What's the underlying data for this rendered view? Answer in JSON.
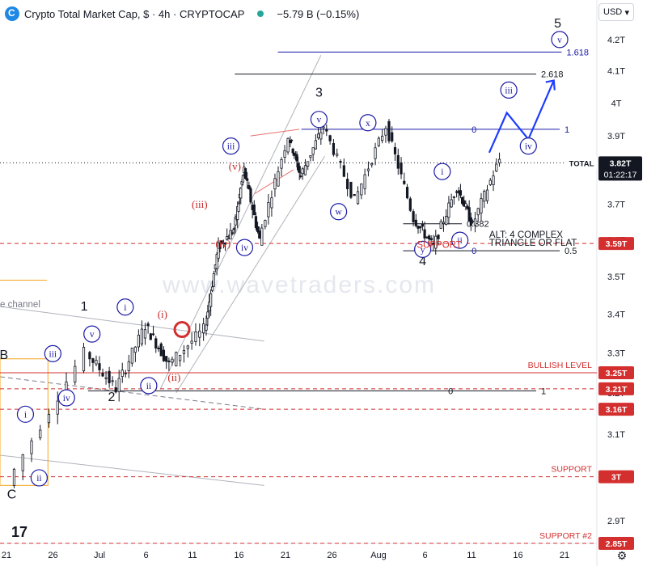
{
  "header": {
    "title": "Crypto Total Market Cap, $ · 4h · CRYPTOCAP",
    "change": "−5.79 B (−0.15%)"
  },
  "toolbar": {
    "currency": "USD"
  },
  "colors": {
    "up": "#131722",
    "wave_blue": "#1a1aa6",
    "wave_red": "#c62828",
    "projection": "#1e3cff",
    "price_label": "#131722",
    "level_label": "#d32f2f"
  },
  "chart_data": {
    "type": "candlestick",
    "symbol": "CRYPTOCAP:TOTAL",
    "timeframe": "4h",
    "x_ticks": [
      "21",
      "26",
      "Jul",
      "6",
      "11",
      "16",
      "21",
      "26",
      "Aug",
      "6",
      "11",
      "16",
      "21"
    ],
    "y_ticks": [
      "4.2T",
      "4.1T",
      "4T",
      "3.9T",
      "3.7T",
      "3.6T",
      "3.5T",
      "3.4T",
      "3.3T",
      "3.2T",
      "3.1T",
      "2.9T"
    ],
    "ylim": [
      2.85,
      4.25
    ],
    "y_scale": "log",
    "price_path": [
      {
        "label": "C",
        "x": 0.5,
        "y": 2.98
      },
      {
        "label": "1",
        "x": 4.5,
        "y": 3.3
      },
      {
        "label": "2",
        "x": 6.0,
        "y": 3.21
      },
      {
        "label": "",
        "x": 7.5,
        "y": 3.37
      },
      {
        "label": "",
        "x": 8.7,
        "y": 3.27
      },
      {
        "label": "",
        "x": 10.5,
        "y": 3.36
      },
      {
        "label": "",
        "x": 11.2,
        "y": 3.58
      },
      {
        "label": "",
        "x": 12.0,
        "y": 3.63
      },
      {
        "label": "",
        "x": 12.5,
        "y": 3.8
      },
      {
        "label": "",
        "x": 13.3,
        "y": 3.6
      },
      {
        "label": "",
        "x": 14.8,
        "y": 3.9
      },
      {
        "label": "",
        "x": 15.4,
        "y": 3.78
      },
      {
        "label": "3",
        "x": 16.6,
        "y": 3.93
      },
      {
        "label": "",
        "x": 18.2,
        "y": 3.71
      },
      {
        "label": "",
        "x": 19.8,
        "y": 3.93
      },
      {
        "label": "",
        "x": 21.2,
        "y": 3.66
      },
      {
        "label": "",
        "x": 22.2,
        "y": 3.58
      },
      {
        "label": "",
        "x": 23.4,
        "y": 3.75
      },
      {
        "label": "",
        "x": 24.2,
        "y": 3.64
      },
      {
        "label": "",
        "x": 25.6,
        "y": 3.83
      }
    ],
    "current_price": {
      "label": "TOTAL",
      "value": "3.82T",
      "countdown": "01:22:17"
    },
    "price_tags": [
      {
        "value": "3.59T",
        "y": 3.59
      },
      {
        "value": "3.25T",
        "y": 3.25
      },
      {
        "value": "3.21T",
        "y": 3.21
      },
      {
        "value": "3.16T",
        "y": 3.16
      },
      {
        "value": "3T",
        "y": 3.0
      },
      {
        "value": "2.85T",
        "y": 2.85
      }
    ],
    "horizontal_levels": [
      {
        "label": "BULLISH LEVEL",
        "y": 3.25,
        "style": "solid"
      },
      {
        "label": "",
        "y": 3.21,
        "style": "dashed"
      },
      {
        "label": "",
        "y": 3.16,
        "style": "dashed"
      },
      {
        "label": "SUPPORT",
        "y": 3.0,
        "style": "dashed"
      },
      {
        "label": "SUPPORT #2",
        "y": 2.85,
        "style": "dashed"
      },
      {
        "label": "",
        "y": 3.59,
        "style": "dashed"
      }
    ],
    "fib_levels": [
      {
        "label": "1.618",
        "y": 4.16,
        "color": "#1a1aa6"
      },
      {
        "label": "2.618",
        "y": 4.09,
        "color": "#131722"
      },
      {
        "label": "1",
        "y": 3.92,
        "color": "#1a1aa6"
      },
      {
        "label": "0",
        "y": 3.92,
        "color": "#1a1aa6"
      },
      {
        "label": "0.382",
        "y": 3.645,
        "color": "#131722"
      },
      {
        "label": "0.5",
        "y": 3.57,
        "color": "#131722"
      },
      {
        "label": "0",
        "y": 3.57,
        "color": "#1a1aa6"
      },
      {
        "label": "1",
        "y": 3.205,
        "color": "#131722"
      },
      {
        "label": "0",
        "y": 3.205,
        "color": "#131722"
      }
    ],
    "wave_labels": [
      {
        "text": "C",
        "type": "plain",
        "x": 0.6,
        "y": 2.95
      },
      {
        "text": "B",
        "type": "plain",
        "x": 0.2,
        "y": 3.285
      },
      {
        "text": "1",
        "type": "plain",
        "x": 4.3,
        "y": 3.41
      },
      {
        "text": "2",
        "type": "plain",
        "x": 5.7,
        "y": 3.18
      },
      {
        "text": "3",
        "type": "plain",
        "x": 16.3,
        "y": 4.02
      },
      {
        "text": "4",
        "type": "plain",
        "x": 21.6,
        "y": 3.53
      },
      {
        "text": "5",
        "type": "plain",
        "x": 28.5,
        "y": 4.24
      },
      {
        "text": "i",
        "type": "circle",
        "x": 1.3,
        "y": 3.14
      },
      {
        "text": "ii",
        "type": "circle",
        "x": 2.0,
        "y": 2.99
      },
      {
        "text": "iii",
        "type": "circle",
        "x": 2.7,
        "y": 3.29
      },
      {
        "text": "iv",
        "type": "circle",
        "x": 3.4,
        "y": 3.18
      },
      {
        "text": "v",
        "type": "circle",
        "x": 4.7,
        "y": 3.34
      },
      {
        "text": "i",
        "type": "circle",
        "x": 6.4,
        "y": 3.41
      },
      {
        "text": "ii",
        "type": "circle",
        "x": 7.6,
        "y": 3.21
      },
      {
        "text": "iii",
        "type": "circle",
        "x": 11.8,
        "y": 3.86
      },
      {
        "text": "iv",
        "type": "circle",
        "x": 12.5,
        "y": 3.57
      },
      {
        "text": "v",
        "type": "circle",
        "x": 16.3,
        "y": 3.94
      },
      {
        "text": "w",
        "type": "circle",
        "x": 17.3,
        "y": 3.67
      },
      {
        "text": "x",
        "type": "circle",
        "x": 18.8,
        "y": 3.93
      },
      {
        "text": "y",
        "type": "circle",
        "x": 21.6,
        "y": 3.565
      },
      {
        "text": "i",
        "type": "circle",
        "x": 22.6,
        "y": 3.785
      },
      {
        "text": "ii",
        "type": "circle",
        "x": 23.5,
        "y": 3.59
      },
      {
        "text": "iii",
        "type": "circle",
        "x": 26.0,
        "y": 4.03
      },
      {
        "text": "iv",
        "type": "circle",
        "x": 27.0,
        "y": 3.86
      },
      {
        "text": "v",
        "type": "circle",
        "x": 28.6,
        "y": 4.19
      },
      {
        "text": "i",
        "type": "paren",
        "x": 8.3,
        "y": 3.39
      },
      {
        "text": "ii",
        "type": "paren",
        "x": 8.9,
        "y": 3.23
      },
      {
        "text": "iii",
        "type": "paren",
        "x": 10.2,
        "y": 3.69
      },
      {
        "text": "iv",
        "type": "paren",
        "x": 11.4,
        "y": 3.58
      },
      {
        "text": "v",
        "type": "paren",
        "x": 12.0,
        "y": 3.8
      }
    ],
    "annotations": [
      {
        "text": "SUPPORT",
        "x": 21.3,
        "y": 3.578,
        "color": "#d32f2f"
      },
      {
        "text": "ALT: 4 COMPLEX",
        "x": 25.0,
        "y": 3.606,
        "color": "#131722"
      },
      {
        "text": "TRIANGLE OR FLAT",
        "x": 25.0,
        "y": 3.584,
        "color": "#131722"
      },
      {
        "text": "e channel",
        "x": 0.0,
        "y": 3.418,
        "color": "#787b86"
      }
    ],
    "projection_path": [
      {
        "x": 25.0,
        "y": 3.85
      },
      {
        "x": 25.9,
        "y": 3.97
      },
      {
        "x": 27.0,
        "y": 3.89
      },
      {
        "x": 28.3,
        "y": 4.07
      }
    ],
    "watermark": "www.wavetraders.com"
  }
}
